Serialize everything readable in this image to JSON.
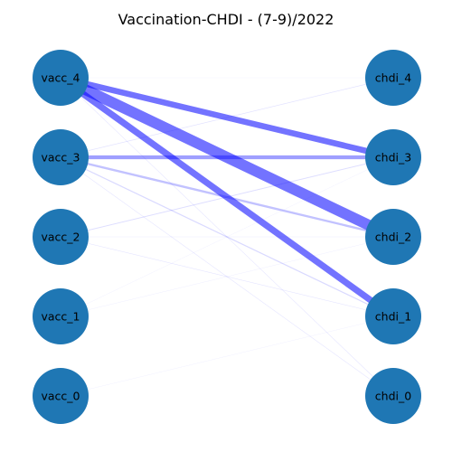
{
  "title": "Vaccination-CHDI - (7-9)/2022",
  "colors": {
    "node": "#1f77b4",
    "edge": "#0000ff",
    "label": "#000000",
    "background": "#ffffff"
  },
  "left_nodes": [
    {
      "id": "vacc_4",
      "label": "vacc_4"
    },
    {
      "id": "vacc_3",
      "label": "vacc_3"
    },
    {
      "id": "vacc_2",
      "label": "vacc_2"
    },
    {
      "id": "vacc_1",
      "label": "vacc_1"
    },
    {
      "id": "vacc_0",
      "label": "vacc_0"
    }
  ],
  "right_nodes": [
    {
      "id": "chdi_4",
      "label": "chdi_4"
    },
    {
      "id": "chdi_3",
      "label": "chdi_3"
    },
    {
      "id": "chdi_2",
      "label": "chdi_2"
    },
    {
      "id": "chdi_1",
      "label": "chdi_1"
    },
    {
      "id": "chdi_0",
      "label": "chdi_0"
    }
  ],
  "edges": [
    {
      "source": "vacc_4",
      "target": "chdi_3",
      "weight": 0.55
    },
    {
      "source": "vacc_4",
      "target": "chdi_2",
      "weight": 1.0
    },
    {
      "source": "vacc_4",
      "target": "chdi_1",
      "weight": 0.6
    },
    {
      "source": "vacc_4",
      "target": "chdi_0",
      "weight": 0.05
    },
    {
      "source": "vacc_4",
      "target": "chdi_4",
      "weight": 0.02
    },
    {
      "source": "vacc_3",
      "target": "chdi_3",
      "weight": 0.35
    },
    {
      "source": "vacc_3",
      "target": "chdi_2",
      "weight": 0.2
    },
    {
      "source": "vacc_3",
      "target": "chdi_1",
      "weight": 0.1
    },
    {
      "source": "vacc_3",
      "target": "chdi_4",
      "weight": 0.06
    },
    {
      "source": "vacc_3",
      "target": "chdi_0",
      "weight": 0.05
    },
    {
      "source": "vacc_2",
      "target": "chdi_3",
      "weight": 0.08
    },
    {
      "source": "vacc_2",
      "target": "chdi_2",
      "weight": 0.04
    },
    {
      "source": "vacc_2",
      "target": "chdi_1",
      "weight": 0.05
    },
    {
      "source": "vacc_1",
      "target": "chdi_2",
      "weight": 0.03
    },
    {
      "source": "vacc_1",
      "target": "chdi_3",
      "weight": 0.02
    },
    {
      "source": "vacc_0",
      "target": "chdi_1",
      "weight": 0.02
    }
  ]
}
